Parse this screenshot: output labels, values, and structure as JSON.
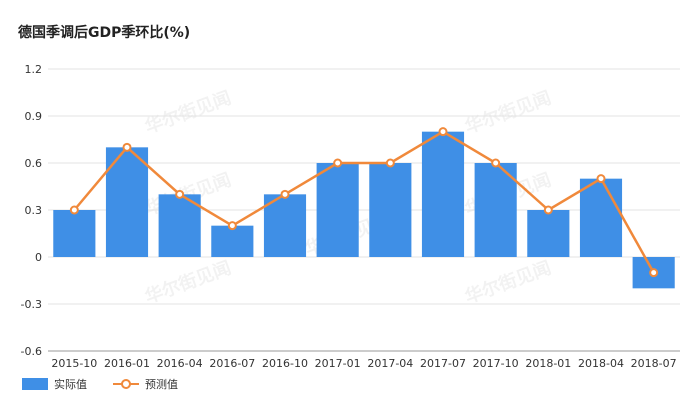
{
  "title": "德国季调后GDP季环比(%)",
  "colors": {
    "bar": "#3f8fe6",
    "line": "#f0893b",
    "grid": "#e3e3e3",
    "axis": "#999999"
  },
  "watermark_text": "华尔街见闻",
  "chart_data": {
    "type": "bar",
    "title": "德国季调后GDP季环比(%)",
    "categories": [
      "2015-10",
      "2016-01",
      "2016-04",
      "2016-07",
      "2016-10",
      "2017-01",
      "2017-04",
      "2017-07",
      "2017-10",
      "2018-01",
      "2018-04",
      "2018-07"
    ],
    "series": [
      {
        "name": "实际值",
        "type": "bar",
        "values": [
          0.3,
          0.7,
          0.4,
          0.2,
          0.4,
          0.6,
          0.6,
          0.8,
          0.6,
          0.3,
          0.5,
          -0.2
        ]
      },
      {
        "name": "预测值",
        "type": "line",
        "values": [
          0.3,
          0.7,
          0.4,
          0.2,
          0.4,
          0.6,
          0.6,
          0.8,
          0.6,
          0.3,
          0.5,
          -0.1
        ]
      }
    ],
    "yticks": [
      "1.2",
      "0.9",
      "0.6",
      "0.3",
      "0",
      "-0.3",
      "-0.6"
    ],
    "ylim": [
      -0.6,
      1.2
    ],
    "grid": true,
    "legend": "bottom-left"
  },
  "legend": {
    "actual": "实际值",
    "forecast": "预测值"
  }
}
